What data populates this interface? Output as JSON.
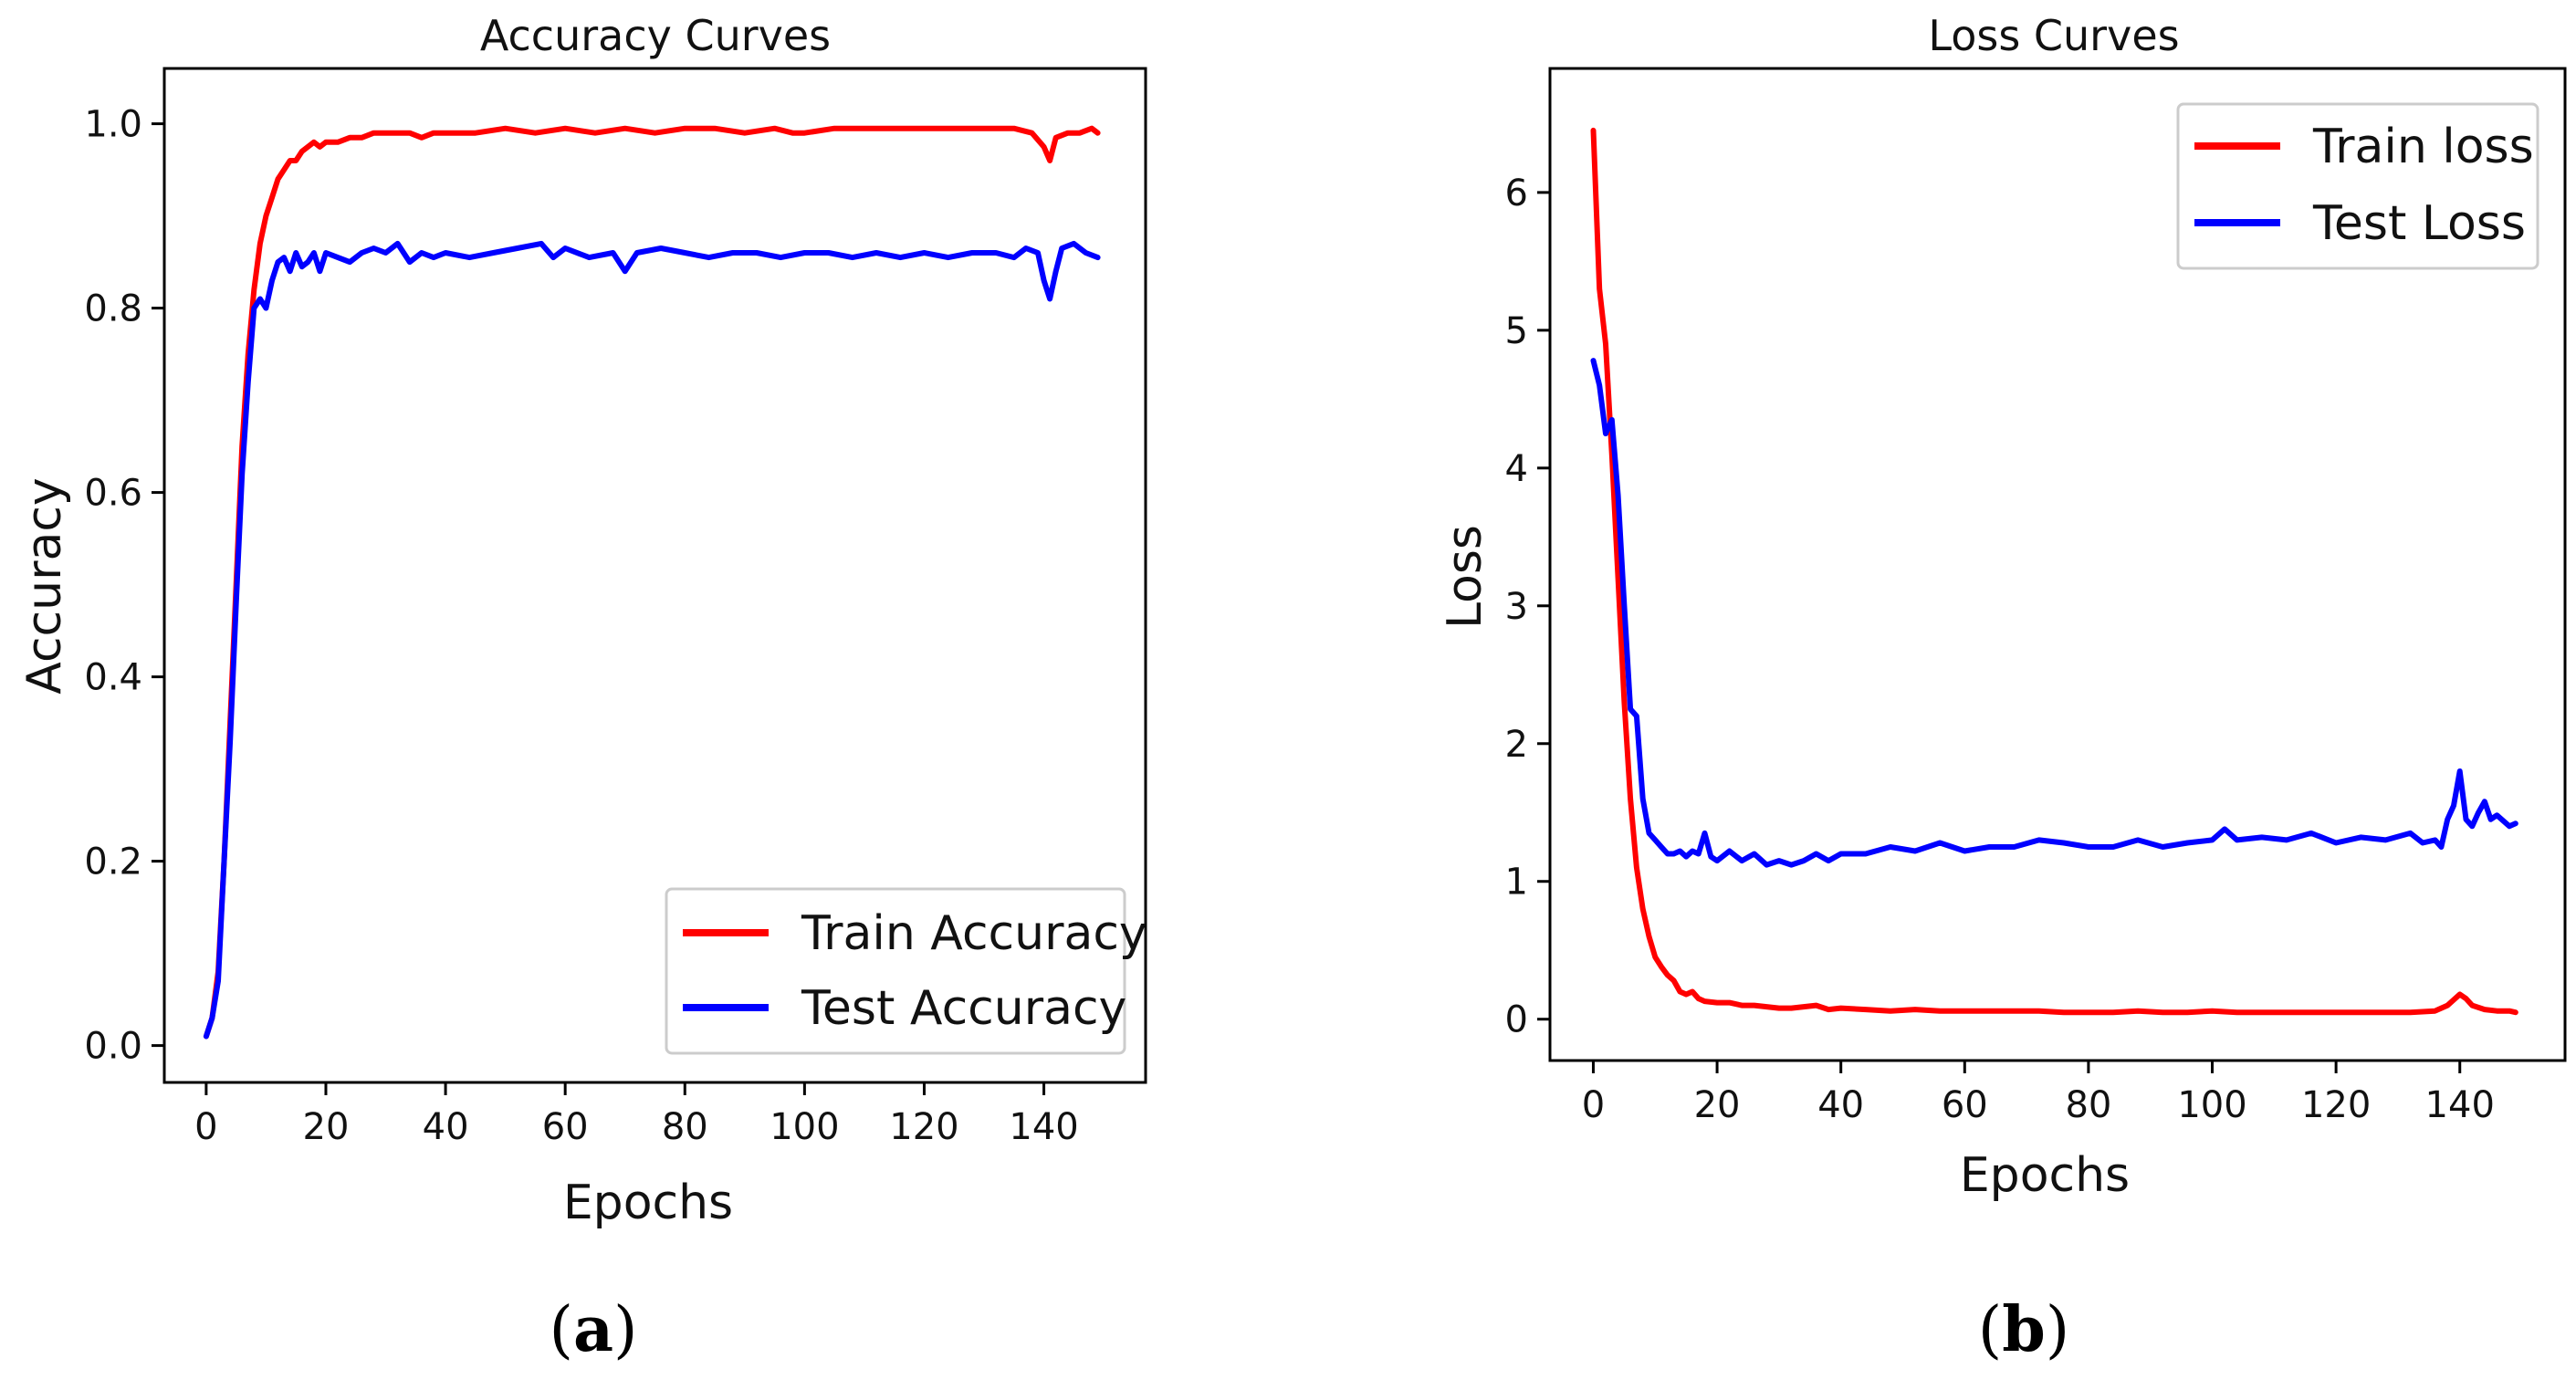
{
  "colors": {
    "train": "#ff0000",
    "test": "#0000ff",
    "axis": "#000000"
  },
  "chart_data": [
    {
      "id": "a",
      "type": "line",
      "title": "Accuracy Curves",
      "xlabel": "Epochs",
      "ylabel": "Accuracy",
      "caption_open": "(",
      "caption_letter": "a",
      "caption_close": ")",
      "xlim": [
        -7,
        157
      ],
      "ylim": [
        -0.04,
        1.06
      ],
      "xticks": [
        0,
        20,
        40,
        60,
        80,
        100,
        120,
        140
      ],
      "yticks": [
        0.0,
        0.2,
        0.4,
        0.6,
        0.8,
        1.0
      ],
      "ytick_labels": [
        "0.0",
        "0.2",
        "0.4",
        "0.6",
        "0.8",
        "1.0"
      ],
      "legend_position": "lower-right",
      "series": [
        {
          "name": "Train Accuracy",
          "color": "#ff0000",
          "x": [
            0,
            1,
            2,
            3,
            4,
            5,
            6,
            7,
            8,
            9,
            10,
            11,
            12,
            13,
            14,
            15,
            16,
            17,
            18,
            19,
            20,
            22,
            24,
            26,
            28,
            30,
            32,
            34,
            36,
            38,
            40,
            45,
            50,
            55,
            60,
            65,
            70,
            75,
            80,
            85,
            90,
            95,
            98,
            100,
            105,
            110,
            115,
            120,
            125,
            130,
            135,
            138,
            140,
            141,
            142,
            144,
            146,
            148,
            149
          ],
          "values": [
            0.01,
            0.03,
            0.08,
            0.2,
            0.35,
            0.5,
            0.65,
            0.75,
            0.82,
            0.87,
            0.9,
            0.92,
            0.94,
            0.95,
            0.96,
            0.96,
            0.97,
            0.975,
            0.98,
            0.975,
            0.98,
            0.98,
            0.985,
            0.985,
            0.99,
            0.99,
            0.99,
            0.99,
            0.985,
            0.99,
            0.99,
            0.99,
            0.995,
            0.99,
            0.995,
            0.99,
            0.995,
            0.99,
            0.995,
            0.995,
            0.99,
            0.995,
            0.99,
            0.99,
            0.995,
            0.995,
            0.995,
            0.995,
            0.995,
            0.995,
            0.995,
            0.99,
            0.975,
            0.96,
            0.985,
            0.99,
            0.99,
            0.995,
            0.99
          ]
        },
        {
          "name": "Test Accuracy",
          "color": "#0000ff",
          "x": [
            0,
            1,
            2,
            3,
            4,
            5,
            6,
            7,
            8,
            9,
            10,
            11,
            12,
            13,
            14,
            15,
            16,
            17,
            18,
            19,
            20,
            22,
            24,
            26,
            28,
            30,
            32,
            34,
            36,
            38,
            40,
            44,
            48,
            52,
            56,
            58,
            60,
            64,
            68,
            70,
            72,
            76,
            80,
            84,
            88,
            92,
            96,
            100,
            104,
            108,
            112,
            116,
            120,
            124,
            128,
            132,
            135,
            137,
            139,
            140,
            141,
            142,
            143,
            145,
            147,
            149
          ],
          "values": [
            0.01,
            0.03,
            0.07,
            0.2,
            0.33,
            0.48,
            0.62,
            0.72,
            0.8,
            0.81,
            0.8,
            0.83,
            0.85,
            0.855,
            0.84,
            0.86,
            0.845,
            0.85,
            0.86,
            0.84,
            0.86,
            0.855,
            0.85,
            0.86,
            0.865,
            0.86,
            0.87,
            0.85,
            0.86,
            0.855,
            0.86,
            0.855,
            0.86,
            0.865,
            0.87,
            0.855,
            0.865,
            0.855,
            0.86,
            0.84,
            0.86,
            0.865,
            0.86,
            0.855,
            0.86,
            0.86,
            0.855,
            0.86,
            0.86,
            0.855,
            0.86,
            0.855,
            0.86,
            0.855,
            0.86,
            0.86,
            0.855,
            0.865,
            0.86,
            0.83,
            0.81,
            0.84,
            0.865,
            0.87,
            0.86,
            0.855
          ]
        }
      ]
    },
    {
      "id": "b",
      "type": "line",
      "title": "Loss Curves",
      "xlabel": "Epochs",
      "ylabel": "Loss",
      "caption_open": "(",
      "caption_letter": "b",
      "caption_close": ")",
      "xlim": [
        -7,
        157
      ],
      "ylim": [
        -0.3,
        6.9
      ],
      "xticks": [
        0,
        20,
        40,
        60,
        80,
        100,
        120,
        140
      ],
      "yticks": [
        0,
        1,
        2,
        3,
        4,
        5,
        6
      ],
      "ytick_labels": [
        "0",
        "1",
        "2",
        "3",
        "4",
        "5",
        "6"
      ],
      "legend_position": "upper-right",
      "series": [
        {
          "name": "Train loss",
          "color": "#ff0000",
          "x": [
            0,
            1,
            2,
            3,
            4,
            5,
            6,
            7,
            8,
            9,
            10,
            11,
            12,
            13,
            14,
            15,
            16,
            17,
            18,
            20,
            22,
            24,
            26,
            28,
            30,
            32,
            34,
            36,
            38,
            40,
            44,
            48,
            52,
            56,
            60,
            64,
            68,
            72,
            76,
            80,
            84,
            88,
            92,
            96,
            100,
            104,
            108,
            112,
            116,
            120,
            124,
            128,
            132,
            136,
            138,
            140,
            141,
            142,
            144,
            146,
            148,
            149
          ],
          "values": [
            6.45,
            5.3,
            4.9,
            4.1,
            3.2,
            2.3,
            1.6,
            1.1,
            0.8,
            0.6,
            0.45,
            0.38,
            0.32,
            0.28,
            0.2,
            0.18,
            0.2,
            0.15,
            0.13,
            0.12,
            0.12,
            0.1,
            0.1,
            0.09,
            0.08,
            0.08,
            0.09,
            0.1,
            0.07,
            0.08,
            0.07,
            0.06,
            0.07,
            0.06,
            0.06,
            0.06,
            0.06,
            0.06,
            0.05,
            0.05,
            0.05,
            0.06,
            0.05,
            0.05,
            0.06,
            0.05,
            0.05,
            0.05,
            0.05,
            0.05,
            0.05,
            0.05,
            0.05,
            0.06,
            0.1,
            0.18,
            0.15,
            0.1,
            0.07,
            0.06,
            0.06,
            0.05
          ]
        },
        {
          "name": "Test Loss",
          "color": "#0000ff",
          "x": [
            0,
            1,
            2,
            3,
            4,
            5,
            6,
            7,
            8,
            9,
            10,
            11,
            12,
            13,
            14,
            15,
            16,
            17,
            18,
            19,
            20,
            22,
            24,
            26,
            28,
            30,
            32,
            34,
            36,
            38,
            40,
            44,
            48,
            52,
            56,
            60,
            64,
            68,
            72,
            76,
            80,
            84,
            88,
            92,
            96,
            100,
            102,
            104,
            108,
            112,
            116,
            120,
            124,
            128,
            132,
            134,
            136,
            137,
            138,
            139,
            140,
            141,
            142,
            143,
            144,
            145,
            146,
            148,
            149
          ],
          "values": [
            4.78,
            4.6,
            4.25,
            4.35,
            3.8,
            3.0,
            2.25,
            2.2,
            1.6,
            1.35,
            1.3,
            1.25,
            1.2,
            1.2,
            1.22,
            1.18,
            1.22,
            1.2,
            1.35,
            1.18,
            1.15,
            1.22,
            1.15,
            1.2,
            1.12,
            1.15,
            1.12,
            1.15,
            1.2,
            1.15,
            1.2,
            1.2,
            1.25,
            1.22,
            1.28,
            1.22,
            1.25,
            1.25,
            1.3,
            1.28,
            1.25,
            1.25,
            1.3,
            1.25,
            1.28,
            1.3,
            1.38,
            1.3,
            1.32,
            1.3,
            1.35,
            1.28,
            1.32,
            1.3,
            1.35,
            1.28,
            1.3,
            1.25,
            1.45,
            1.55,
            1.8,
            1.45,
            1.4,
            1.5,
            1.58,
            1.45,
            1.48,
            1.4,
            1.42
          ]
        }
      ]
    }
  ]
}
